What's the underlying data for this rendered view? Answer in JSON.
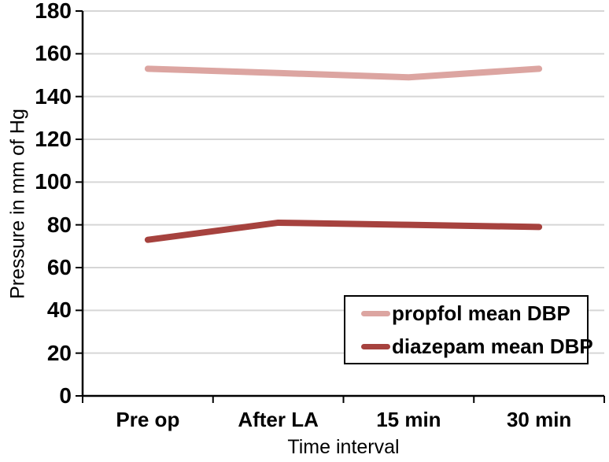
{
  "chart_data": {
    "type": "line",
    "categories": [
      "Pre op",
      "After LA",
      "15 min",
      "30 min"
    ],
    "series": [
      {
        "name": "propfol mean DBP",
        "values": [
          153,
          151,
          149,
          153
        ],
        "color": "#DCA5A1"
      },
      {
        "name": "diazepam mean DBP",
        "values": [
          73,
          81,
          80,
          79
        ],
        "color": "#A6423E"
      }
    ],
    "title": "",
    "xlabel": "Time interval",
    "ylabel": "Pressure in mm of Hg",
    "ylim": [
      0,
      180
    ],
    "yticks": [
      0,
      20,
      40,
      60,
      80,
      100,
      120,
      140,
      160,
      180
    ],
    "grid": true,
    "legend_position": "inside-bottom-right"
  },
  "colors": {
    "gridline": "#D6D6D6",
    "axis": "#000000",
    "background": "#FFFFFF",
    "text": "#000000"
  }
}
